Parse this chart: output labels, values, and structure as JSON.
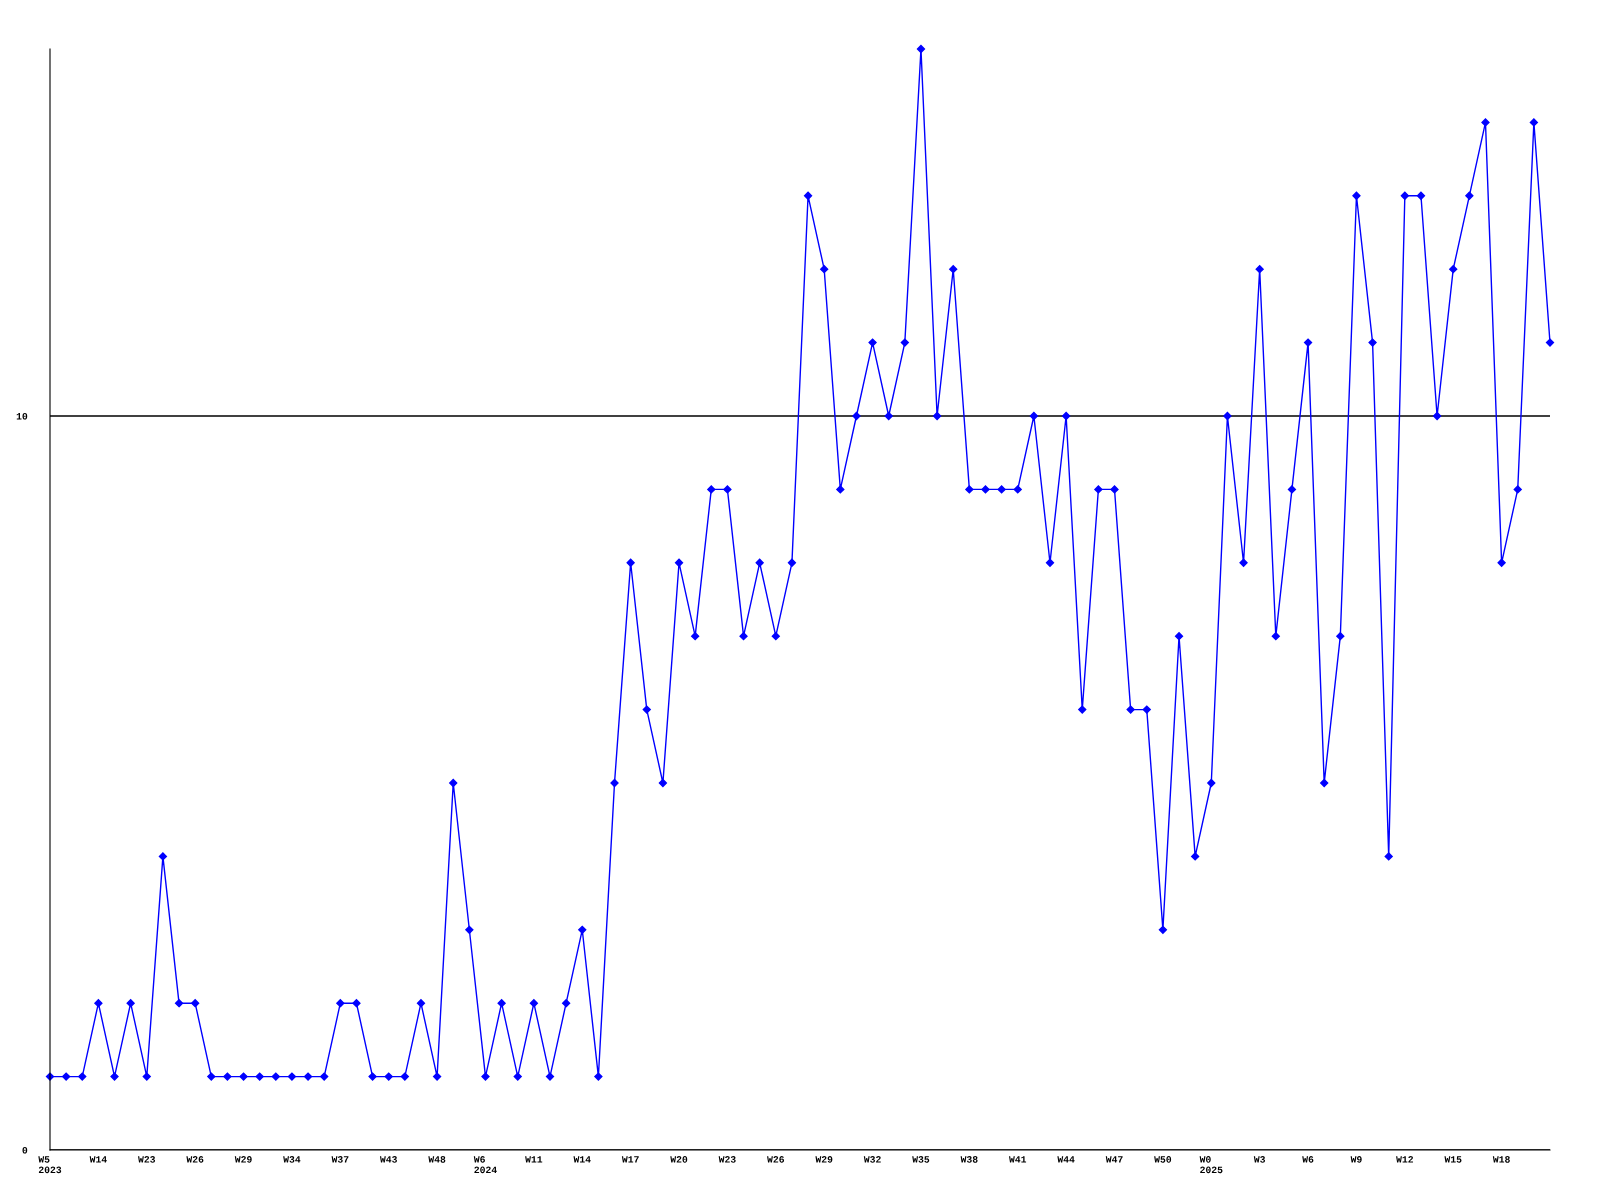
{
  "chart_data": {
    "type": "line",
    "categories": [
      "W5\n2023",
      null,
      null,
      "W14",
      null,
      null,
      "W23",
      null,
      null,
      "W26",
      null,
      null,
      "W29",
      null,
      null,
      "W34",
      null,
      null,
      "W37",
      null,
      null,
      "W43",
      null,
      null,
      "W48",
      null,
      null,
      "W6\n2024",
      null,
      null,
      "W11",
      null,
      null,
      "W14",
      null,
      null,
      "W17",
      null,
      null,
      "W20",
      null,
      null,
      "W23",
      null,
      null,
      "W26",
      null,
      null,
      "W29",
      null,
      null,
      "W32",
      null,
      null,
      "W35",
      null,
      null,
      "W38",
      null,
      null,
      "W41",
      null,
      null,
      "W44",
      null,
      null,
      "W47",
      null,
      null,
      "W50",
      null,
      null,
      "W0\n2025",
      null,
      null,
      "W3",
      null,
      null,
      "W6",
      null,
      null,
      "W9",
      null,
      null,
      "W12",
      null,
      null,
      "W15",
      null,
      null,
      "W18",
      null,
      null,
      null
    ],
    "series": [
      {
        "color": "#0000ff",
        "values": [
          1,
          1,
          1,
          2,
          1,
          2,
          1,
          4,
          2,
          2,
          1,
          1,
          1,
          1,
          1,
          1,
          1,
          1,
          2,
          2,
          1,
          1,
          1,
          2,
          1,
          5,
          3,
          1,
          2,
          1,
          2,
          1,
          2,
          3,
          1,
          5,
          8,
          6,
          5,
          8,
          7,
          9,
          9,
          7,
          8,
          7,
          8,
          13,
          12,
          9,
          10,
          11,
          10,
          11,
          15,
          10,
          12,
          9,
          9,
          9,
          9,
          10,
          8,
          10,
          6,
          9,
          9,
          6,
          6,
          3,
          7,
          4,
          5,
          10,
          8,
          12,
          7,
          9,
          11,
          5,
          7,
          13,
          11,
          4,
          13,
          13,
          10,
          12,
          13,
          14,
          8,
          9,
          14,
          11
        ]
      }
    ],
    "ylim": [
      0,
      15
    ],
    "yticks": [
      0,
      10
    ],
    "grid": "y",
    "marker": "diamond",
    "line_style": "solid"
  }
}
